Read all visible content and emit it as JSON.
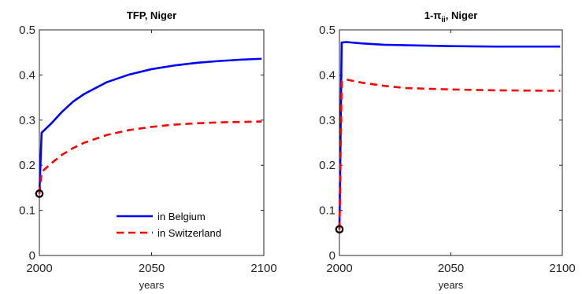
{
  "chart_data": [
    {
      "type": "line",
      "title": "TFP, Niger",
      "xlabel": "years",
      "ylabel": "",
      "xlim": [
        2000,
        2100
      ],
      "ylim": [
        0,
        0.5
      ],
      "xticks": [
        2000,
        2050,
        2100
      ],
      "xtick_labels": [
        "2000",
        "2050",
        "2100"
      ],
      "yticks": [
        0,
        0.1,
        0.2,
        0.3,
        0.4,
        0.5
      ],
      "ytick_labels": [
        "0",
        "0.1",
        "0.2",
        "0.3",
        "0.4",
        "0.5"
      ],
      "grid": false,
      "legend_position": "bottom-right",
      "start_marker": {
        "x": 2000,
        "y": 0.137,
        "shape": "circle",
        "color": "#000000"
      },
      "series": [
        {
          "name": "in Belgium",
          "color": "#0000ff",
          "style": "solid",
          "points": [
            [
              2000,
              0.137
            ],
            [
              2001,
              0.272
            ],
            [
              2005,
              0.291
            ],
            [
              2010,
              0.318
            ],
            [
              2015,
              0.341
            ],
            [
              2020,
              0.358
            ],
            [
              2030,
              0.384
            ],
            [
              2040,
              0.401
            ],
            [
              2050,
              0.413
            ],
            [
              2060,
              0.421
            ],
            [
              2070,
              0.427
            ],
            [
              2080,
              0.431
            ],
            [
              2090,
              0.434
            ],
            [
              2099,
              0.436
            ]
          ]
        },
        {
          "name": "in Switzerland",
          "color": "#ff0000",
          "style": "dashed",
          "points": [
            [
              2000,
              0.137
            ],
            [
              2001,
              0.185
            ],
            [
              2005,
              0.203
            ],
            [
              2010,
              0.223
            ],
            [
              2015,
              0.238
            ],
            [
              2020,
              0.25
            ],
            [
              2030,
              0.267
            ],
            [
              2040,
              0.278
            ],
            [
              2050,
              0.285
            ],
            [
              2060,
              0.29
            ],
            [
              2070,
              0.293
            ],
            [
              2080,
              0.295
            ],
            [
              2090,
              0.296
            ],
            [
              2099,
              0.297
            ]
          ]
        }
      ]
    },
    {
      "type": "line",
      "title": "1-π",
      "title_subscript": "ii",
      "title_suffix": ", Niger",
      "xlabel": "years",
      "ylabel": "",
      "xlim": [
        2000,
        2100
      ],
      "ylim": [
        0,
        0.5
      ],
      "xticks": [
        2000,
        2050,
        2100
      ],
      "xtick_labels": [
        "2000",
        "2050",
        "2100"
      ],
      "yticks": [
        0,
        0.1,
        0.2,
        0.3,
        0.4,
        0.5
      ],
      "ytick_labels": [
        "0",
        "0.1",
        "0.2",
        "0.3",
        "0.4",
        "0.5"
      ],
      "grid": false,
      "start_marker": {
        "x": 2000,
        "y": 0.058,
        "shape": "circle",
        "color": "#000000"
      },
      "series": [
        {
          "name": "in Belgium",
          "color": "#0000ff",
          "style": "solid",
          "points": [
            [
              2000,
              0.058
            ],
            [
              2001,
              0.472
            ],
            [
              2003,
              0.473
            ],
            [
              2010,
              0.47
            ],
            [
              2020,
              0.467
            ],
            [
              2030,
              0.466
            ],
            [
              2050,
              0.464
            ],
            [
              2070,
              0.463
            ],
            [
              2099,
              0.463
            ]
          ]
        },
        {
          "name": "in Switzerland",
          "color": "#ff0000",
          "style": "dashed",
          "points": [
            [
              2000,
              0.058
            ],
            [
              2001,
              0.385
            ],
            [
              2003,
              0.39
            ],
            [
              2010,
              0.383
            ],
            [
              2020,
              0.376
            ],
            [
              2030,
              0.371
            ],
            [
              2050,
              0.368
            ],
            [
              2070,
              0.366
            ],
            [
              2099,
              0.365
            ]
          ]
        }
      ]
    }
  ]
}
